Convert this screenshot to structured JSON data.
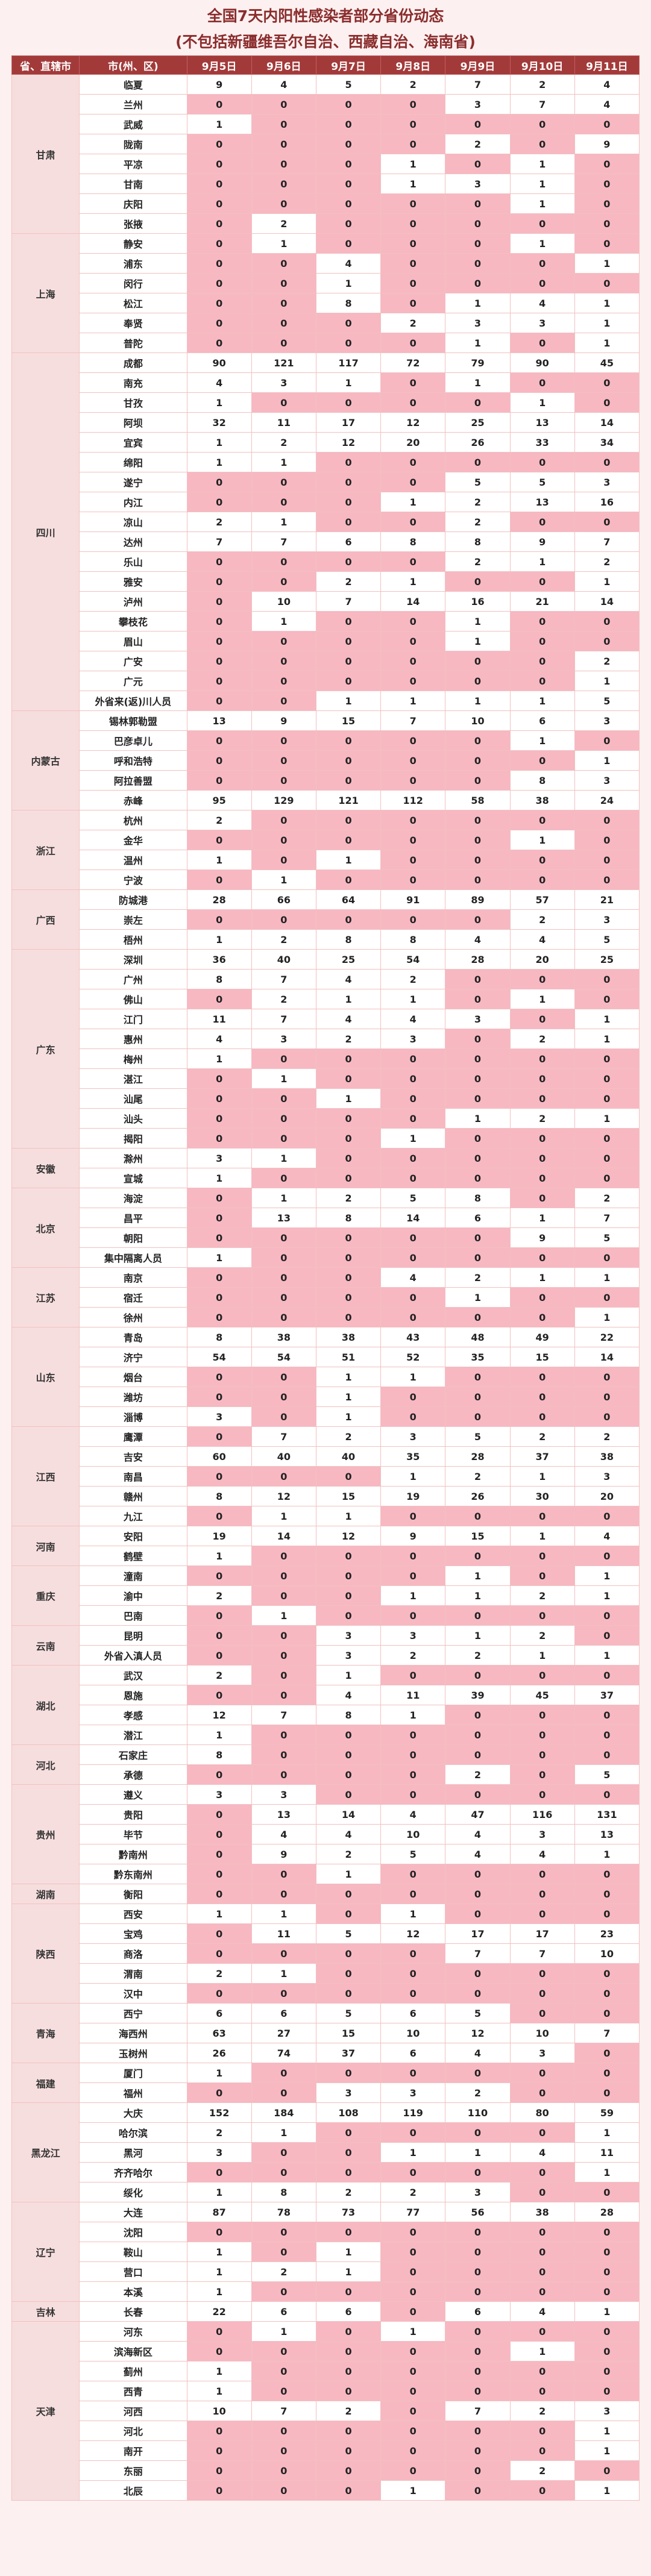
{
  "title": "全国7天内阳性感染者部分省份动态",
  "subtitle": "(不包括新疆维吾尔自治、西藏自治、海南省)",
  "headers": [
    "省、直辖市",
    "市(州、区)",
    "9月5日",
    "9月6日",
    "9月7日",
    "9月8日",
    "9月9日",
    "9月10日",
    "9月11日"
  ],
  "provinces": [
    {
      "name": "甘肃",
      "rows": [
        [
          "临夏",
          "9",
          "4",
          "5",
          "2",
          "7",
          "2",
          "4"
        ],
        [
          "兰州",
          "0",
          "0",
          "0",
          "0",
          "3",
          "7",
          "4"
        ],
        [
          "武威",
          "1",
          "0",
          "0",
          "0",
          "0",
          "0",
          "0"
        ],
        [
          "陇南",
          "0",
          "0",
          "0",
          "0",
          "2",
          "0",
          "9"
        ],
        [
          "平凉",
          "0",
          "0",
          "0",
          "1",
          "0",
          "1",
          "0"
        ],
        [
          "甘南",
          "0",
          "0",
          "0",
          "1",
          "3",
          "1",
          "0"
        ],
        [
          "庆阳",
          "0",
          "0",
          "0",
          "0",
          "0",
          "1",
          "0"
        ],
        [
          "张掖",
          "0",
          "2",
          "0",
          "0",
          "0",
          "0",
          "0"
        ]
      ]
    },
    {
      "name": "上海",
      "rows": [
        [
          "静安",
          "0",
          "1",
          "0",
          "0",
          "0",
          "1",
          "0"
        ],
        [
          "浦东",
          "0",
          "0",
          "4",
          "0",
          "0",
          "0",
          "1"
        ],
        [
          "闵行",
          "0",
          "0",
          "1",
          "0",
          "0",
          "0",
          "0"
        ],
        [
          "松江",
          "0",
          "0",
          "8",
          "0",
          "1",
          "4",
          "1"
        ],
        [
          "奉贤",
          "0",
          "0",
          "0",
          "2",
          "3",
          "3",
          "1"
        ],
        [
          "普陀",
          "0",
          "0",
          "0",
          "0",
          "1",
          "0",
          "1"
        ]
      ]
    },
    {
      "name": "四川",
      "rows": [
        [
          "成都",
          "90",
          "121",
          "117",
          "72",
          "79",
          "90",
          "45"
        ],
        [
          "南充",
          "4",
          "3",
          "1",
          "0",
          "1",
          "0",
          "0"
        ],
        [
          "甘孜",
          "1",
          "0",
          "0",
          "0",
          "0",
          "1",
          "0"
        ],
        [
          "阿坝",
          "32",
          "11",
          "17",
          "12",
          "25",
          "13",
          "14"
        ],
        [
          "宜宾",
          "1",
          "2",
          "12",
          "20",
          "26",
          "33",
          "34"
        ],
        [
          "绵阳",
          "1",
          "1",
          "0",
          "0",
          "0",
          "0",
          "0"
        ],
        [
          "遂宁",
          "0",
          "0",
          "0",
          "0",
          "5",
          "5",
          "3"
        ],
        [
          "内江",
          "0",
          "0",
          "0",
          "1",
          "2",
          "13",
          "16"
        ],
        [
          "凉山",
          "2",
          "1",
          "0",
          "0",
          "2",
          "0",
          "0"
        ],
        [
          "达州",
          "7",
          "7",
          "6",
          "8",
          "8",
          "9",
          "7"
        ],
        [
          "乐山",
          "0",
          "0",
          "0",
          "0",
          "2",
          "1",
          "2"
        ],
        [
          "雅安",
          "0",
          "0",
          "2",
          "1",
          "0",
          "0",
          "1"
        ],
        [
          "泸州",
          "0",
          "10",
          "7",
          "14",
          "16",
          "21",
          "14"
        ],
        [
          "攀枝花",
          "0",
          "1",
          "0",
          "0",
          "1",
          "0",
          "0"
        ],
        [
          "眉山",
          "0",
          "0",
          "0",
          "0",
          "1",
          "0",
          "0"
        ],
        [
          "广安",
          "0",
          "0",
          "0",
          "0",
          "0",
          "0",
          "2"
        ],
        [
          "广元",
          "0",
          "0",
          "0",
          "0",
          "0",
          "0",
          "1"
        ],
        [
          "外省来(返)川人员",
          "0",
          "0",
          "1",
          "1",
          "1",
          "1",
          "5"
        ]
      ]
    },
    {
      "name": "内蒙古",
      "rows": [
        [
          "锡林郭勒盟",
          "13",
          "9",
          "15",
          "7",
          "10",
          "6",
          "3"
        ],
        [
          "巴彦卓儿",
          "0",
          "0",
          "0",
          "0",
          "0",
          "1",
          "0"
        ],
        [
          "呼和浩特",
          "0",
          "0",
          "0",
          "0",
          "0",
          "0",
          "1"
        ],
        [
          "阿拉善盟",
          "0",
          "0",
          "0",
          "0",
          "0",
          "8",
          "3"
        ],
        [
          "赤峰",
          "95",
          "129",
          "121",
          "112",
          "58",
          "38",
          "24"
        ]
      ]
    },
    {
      "name": "浙江",
      "rows": [
        [
          "杭州",
          "2",
          "0",
          "0",
          "0",
          "0",
          "0",
          "0"
        ],
        [
          "金华",
          "0",
          "0",
          "0",
          "0",
          "0",
          "1",
          "0"
        ],
        [
          "温州",
          "1",
          "0",
          "1",
          "0",
          "0",
          "0",
          "0"
        ],
        [
          "宁波",
          "0",
          "1",
          "0",
          "0",
          "0",
          "0",
          "0"
        ]
      ]
    },
    {
      "name": "广西",
      "rows": [
        [
          "防城港",
          "28",
          "66",
          "64",
          "91",
          "89",
          "57",
          "21"
        ],
        [
          "崇左",
          "0",
          "0",
          "0",
          "0",
          "0",
          "2",
          "3"
        ],
        [
          "梧州",
          "1",
          "2",
          "8",
          "8",
          "4",
          "4",
          "5"
        ]
      ]
    },
    {
      "name": "广东",
      "rows": [
        [
          "深圳",
          "36",
          "40",
          "25",
          "54",
          "28",
          "20",
          "25"
        ],
        [
          "广州",
          "8",
          "7",
          "4",
          "2",
          "0",
          "0",
          "0"
        ],
        [
          "佛山",
          "0",
          "2",
          "1",
          "1",
          "0",
          "1",
          "0"
        ],
        [
          "江门",
          "11",
          "7",
          "4",
          "4",
          "3",
          "0",
          "1"
        ],
        [
          "惠州",
          "4",
          "3",
          "2",
          "3",
          "0",
          "2",
          "1"
        ],
        [
          "梅州",
          "1",
          "0",
          "0",
          "0",
          "0",
          "0",
          "0"
        ],
        [
          "湛江",
          "0",
          "1",
          "0",
          "0",
          "0",
          "0",
          "0"
        ],
        [
          "汕尾",
          "0",
          "0",
          "1",
          "0",
          "0",
          "0",
          "0"
        ],
        [
          "汕头",
          "0",
          "0",
          "0",
          "0",
          "1",
          "2",
          "1"
        ],
        [
          "揭阳",
          "0",
          "0",
          "0",
          "1",
          "0",
          "0",
          "0"
        ]
      ]
    },
    {
      "name": "安徽",
      "rows": [
        [
          "滁州",
          "3",
          "1",
          "0",
          "0",
          "0",
          "0",
          "0"
        ],
        [
          "宣城",
          "1",
          "0",
          "0",
          "0",
          "0",
          "0",
          "0"
        ]
      ]
    },
    {
      "name": "北京",
      "rows": [
        [
          "海淀",
          "0",
          "1",
          "2",
          "5",
          "8",
          "0",
          "2"
        ],
        [
          "昌平",
          "0",
          "13",
          "8",
          "14",
          "6",
          "1",
          "7"
        ],
        [
          "朝阳",
          "0",
          "0",
          "0",
          "0",
          "0",
          "9",
          "5"
        ],
        [
          "集中隔离人员",
          "1",
          "0",
          "0",
          "0",
          "0",
          "0",
          "0"
        ]
      ]
    },
    {
      "name": "江苏",
      "rows": [
        [
          "南京",
          "0",
          "0",
          "0",
          "4",
          "2",
          "1",
          "1"
        ],
        [
          "宿迁",
          "0",
          "0",
          "0",
          "0",
          "1",
          "0",
          "0"
        ],
        [
          "徐州",
          "0",
          "0",
          "0",
          "0",
          "0",
          "0",
          "1"
        ]
      ]
    },
    {
      "name": "山东",
      "rows": [
        [
          "青岛",
          "8",
          "38",
          "38",
          "43",
          "48",
          "49",
          "22"
        ],
        [
          "济宁",
          "54",
          "54",
          "51",
          "52",
          "35",
          "15",
          "14"
        ],
        [
          "烟台",
          "0",
          "0",
          "1",
          "1",
          "0",
          "0",
          "0"
        ],
        [
          "潍坊",
          "0",
          "0",
          "1",
          "0",
          "0",
          "0",
          "0"
        ],
        [
          "淄博",
          "3",
          "0",
          "1",
          "0",
          "0",
          "0",
          "0"
        ]
      ]
    },
    {
      "name": "江西",
      "rows": [
        [
          "鹰潭",
          "0",
          "7",
          "2",
          "3",
          "5",
          "2",
          "2"
        ],
        [
          "吉安",
          "60",
          "40",
          "40",
          "35",
          "28",
          "37",
          "38"
        ],
        [
          "南昌",
          "0",
          "0",
          "0",
          "1",
          "2",
          "1",
          "3"
        ],
        [
          "赣州",
          "8",
          "12",
          "15",
          "19",
          "26",
          "30",
          "20"
        ],
        [
          "九江",
          "0",
          "1",
          "1",
          "0",
          "0",
          "0",
          "0"
        ]
      ]
    },
    {
      "name": "河南",
      "rows": [
        [
          "安阳",
          "19",
          "14",
          "12",
          "9",
          "15",
          "1",
          "4"
        ],
        [
          "鹤壁",
          "1",
          "0",
          "0",
          "0",
          "0",
          "0",
          "0"
        ]
      ]
    },
    {
      "name": "重庆",
      "rows": [
        [
          "潼南",
          "0",
          "0",
          "0",
          "0",
          "1",
          "0",
          "1"
        ],
        [
          "渝中",
          "2",
          "0",
          "0",
          "1",
          "1",
          "2",
          "1"
        ],
        [
          "巴南",
          "0",
          "1",
          "0",
          "0",
          "0",
          "0",
          "0"
        ]
      ]
    },
    {
      "name": "云南",
      "rows": [
        [
          "昆明",
          "0",
          "0",
          "3",
          "3",
          "1",
          "2",
          "0"
        ],
        [
          "外省入滇人员",
          "0",
          "0",
          "3",
          "2",
          "2",
          "1",
          "1"
        ]
      ]
    },
    {
      "name": "湖北",
      "rows": [
        [
          "武汉",
          "2",
          "0",
          "1",
          "0",
          "0",
          "0",
          "0"
        ],
        [
          "恩施",
          "0",
          "0",
          "4",
          "11",
          "39",
          "45",
          "37"
        ],
        [
          "孝感",
          "12",
          "7",
          "8",
          "1",
          "0",
          "0",
          "0"
        ],
        [
          "潜江",
          "1",
          "0",
          "0",
          "0",
          "0",
          "0",
          "0"
        ]
      ]
    },
    {
      "name": "河北",
      "rows": [
        [
          "石家庄",
          "8",
          "0",
          "0",
          "0",
          "0",
          "0",
          "0"
        ],
        [
          "承德",
          "0",
          "0",
          "0",
          "0",
          "2",
          "0",
          "5"
        ]
      ]
    },
    {
      "name": "贵州",
      "rows": [
        [
          "遵义",
          "3",
          "3",
          "0",
          "0",
          "0",
          "0",
          "0"
        ],
        [
          "贵阳",
          "0",
          "13",
          "14",
          "4",
          "47",
          "116",
          "131"
        ],
        [
          "毕节",
          "0",
          "4",
          "4",
          "10",
          "4",
          "3",
          "13"
        ],
        [
          "黔南州",
          "0",
          "9",
          "2",
          "5",
          "4",
          "4",
          "1"
        ],
        [
          "黔东南州",
          "0",
          "0",
          "1",
          "0",
          "0",
          "0",
          "0"
        ]
      ]
    },
    {
      "name": "湖南",
      "rows": [
        [
          "衡阳",
          "0",
          "0",
          "0",
          "0",
          "0",
          "0",
          "0"
        ]
      ]
    },
    {
      "name": "陕西",
      "rows": [
        [
          "西安",
          "1",
          "1",
          "0",
          "1",
          "0",
          "0",
          "0"
        ],
        [
          "宝鸡",
          "0",
          "11",
          "5",
          "12",
          "17",
          "17",
          "23"
        ],
        [
          "商洛",
          "0",
          "0",
          "0",
          "0",
          "7",
          "7",
          "10"
        ],
        [
          "渭南",
          "2",
          "1",
          "0",
          "0",
          "0",
          "0",
          "0"
        ],
        [
          "汉中",
          "0",
          "0",
          "0",
          "0",
          "0",
          "0",
          "0"
        ]
      ]
    },
    {
      "name": "青海",
      "rows": [
        [
          "西宁",
          "6",
          "6",
          "5",
          "6",
          "5",
          "0",
          "0"
        ],
        [
          "海西州",
          "63",
          "27",
          "15",
          "10",
          "12",
          "10",
          "7"
        ],
        [
          "玉树州",
          "26",
          "74",
          "37",
          "6",
          "4",
          "3",
          "0"
        ]
      ]
    },
    {
      "name": "福建",
      "rows": [
        [
          "厦门",
          "1",
          "0",
          "0",
          "0",
          "0",
          "0",
          "0"
        ],
        [
          "福州",
          "0",
          "0",
          "3",
          "3",
          "2",
          "0",
          "0"
        ]
      ]
    },
    {
      "name": "黑龙江",
      "rows": [
        [
          "大庆",
          "152",
          "184",
          "108",
          "119",
          "110",
          "80",
          "59"
        ],
        [
          "哈尔滨",
          "2",
          "1",
          "0",
          "0",
          "0",
          "0",
          "1"
        ],
        [
          "黑河",
          "3",
          "0",
          "0",
          "1",
          "1",
          "4",
          "11"
        ],
        [
          "齐齐哈尔",
          "0",
          "0",
          "0",
          "0",
          "0",
          "0",
          "1"
        ],
        [
          "绥化",
          "1",
          "8",
          "2",
          "2",
          "3",
          "0",
          "0"
        ]
      ]
    },
    {
      "name": "辽宁",
      "rows": [
        [
          "大连",
          "87",
          "78",
          "73",
          "77",
          "56",
          "38",
          "28"
        ],
        [
          "沈阳",
          "0",
          "0",
          "0",
          "0",
          "0",
          "0",
          "0"
        ],
        [
          "鞍山",
          "1",
          "0",
          "1",
          "0",
          "0",
          "0",
          "0"
        ],
        [
          "营口",
          "1",
          "2",
          "1",
          "0",
          "0",
          "0",
          "0"
        ],
        [
          "本溪",
          "1",
          "0",
          "0",
          "0",
          "0",
          "0",
          "0"
        ]
      ]
    },
    {
      "name": "吉林",
      "rows": [
        [
          "长春",
          "22",
          "6",
          "6",
          "0",
          "6",
          "4",
          "1"
        ]
      ]
    },
    {
      "name": "天津",
      "rows": [
        [
          "河东",
          "0",
          "1",
          "0",
          "1",
          "0",
          "0",
          "0"
        ],
        [
          "滨海新区",
          "0",
          "0",
          "0",
          "0",
          "0",
          "1",
          "0"
        ],
        [
          "蓟州",
          "1",
          "0",
          "0",
          "0",
          "0",
          "0",
          "0"
        ],
        [
          "西青",
          "1",
          "0",
          "0",
          "0",
          "0",
          "0",
          "0"
        ],
        [
          "河西",
          "10",
          "7",
          "2",
          "0",
          "7",
          "2",
          "3"
        ],
        [
          "河北",
          "0",
          "0",
          "0",
          "0",
          "0",
          "0",
          "1"
        ],
        [
          "南开",
          "0",
          "0",
          "0",
          "0",
          "0",
          "0",
          "1"
        ],
        [
          "东丽",
          "0",
          "0",
          "0",
          "0",
          "0",
          "2",
          "0"
        ],
        [
          "北辰",
          "0",
          "0",
          "0",
          "1",
          "0",
          "0",
          "1"
        ]
      ]
    }
  ]
}
